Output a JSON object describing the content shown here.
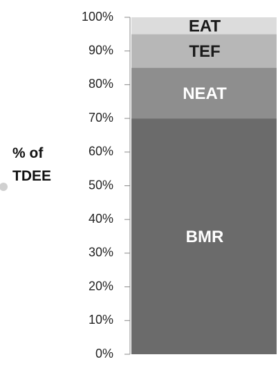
{
  "chart_data": {
    "type": "stacked-bar",
    "ylabel": "% of TDEE",
    "categories": [
      null
    ],
    "series": [
      {
        "name": "BMR",
        "color": "#6b6b6b",
        "values": [
          70
        ]
      },
      {
        "name": "NEAT",
        "color": "#8e8e8e",
        "values": [
          15
        ]
      },
      {
        "name": "TEF",
        "color": "#b7b7b7",
        "values": [
          10
        ]
      },
      {
        "name": "EAT",
        "color": "#dcdcdc",
        "values": [
          5
        ]
      }
    ],
    "ylim": [
      0,
      100
    ],
    "yticks": [
      {
        "value": 0,
        "label": "0%"
      },
      {
        "value": 10,
        "label": "10%"
      },
      {
        "value": 20,
        "label": "20%"
      },
      {
        "value": 30,
        "label": "30%"
      },
      {
        "value": 40,
        "label": "40%"
      },
      {
        "value": 50,
        "label": "50%"
      },
      {
        "value": 60,
        "label": "60%"
      },
      {
        "value": 70,
        "label": "70%"
      },
      {
        "value": 80,
        "label": "80%"
      },
      {
        "value": 90,
        "label": "90%"
      },
      {
        "value": 100,
        "label": "100%"
      }
    ]
  }
}
